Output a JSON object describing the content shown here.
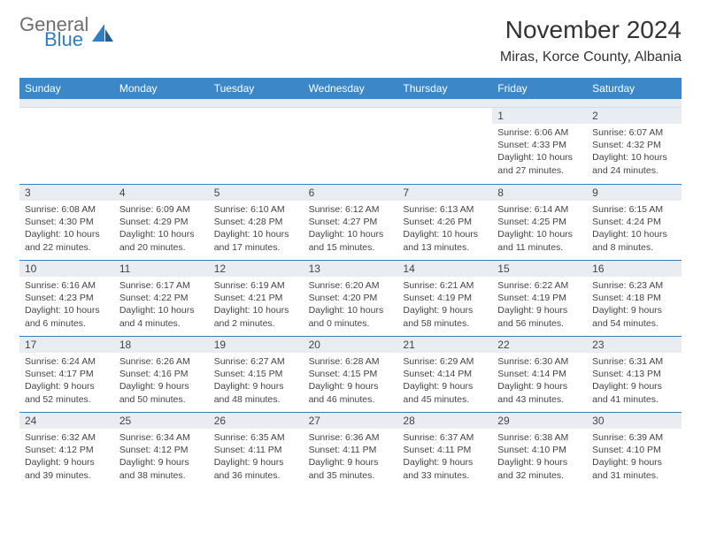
{
  "brand": {
    "general": "General",
    "blue": "Blue"
  },
  "header": {
    "title": "November 2024",
    "location": "Miras, Korce County, Albania"
  },
  "colors": {
    "header_bg": "#3b87c8",
    "band_bg": "#e9edf1",
    "rule": "#2f7fc1",
    "text": "#444444"
  },
  "weekdays": [
    "Sunday",
    "Monday",
    "Tuesday",
    "Wednesday",
    "Thursday",
    "Friday",
    "Saturday"
  ],
  "layout": {
    "columns": 7,
    "rows": 5,
    "blanks_before": 5
  },
  "days": [
    {
      "n": "1",
      "sr": "Sunrise: 6:06 AM",
      "ss": "Sunset: 4:33 PM",
      "d1": "Daylight: 10 hours",
      "d2": "and 27 minutes."
    },
    {
      "n": "2",
      "sr": "Sunrise: 6:07 AM",
      "ss": "Sunset: 4:32 PM",
      "d1": "Daylight: 10 hours",
      "d2": "and 24 minutes."
    },
    {
      "n": "3",
      "sr": "Sunrise: 6:08 AM",
      "ss": "Sunset: 4:30 PM",
      "d1": "Daylight: 10 hours",
      "d2": "and 22 minutes."
    },
    {
      "n": "4",
      "sr": "Sunrise: 6:09 AM",
      "ss": "Sunset: 4:29 PM",
      "d1": "Daylight: 10 hours",
      "d2": "and 20 minutes."
    },
    {
      "n": "5",
      "sr": "Sunrise: 6:10 AM",
      "ss": "Sunset: 4:28 PM",
      "d1": "Daylight: 10 hours",
      "d2": "and 17 minutes."
    },
    {
      "n": "6",
      "sr": "Sunrise: 6:12 AM",
      "ss": "Sunset: 4:27 PM",
      "d1": "Daylight: 10 hours",
      "d2": "and 15 minutes."
    },
    {
      "n": "7",
      "sr": "Sunrise: 6:13 AM",
      "ss": "Sunset: 4:26 PM",
      "d1": "Daylight: 10 hours",
      "d2": "and 13 minutes."
    },
    {
      "n": "8",
      "sr": "Sunrise: 6:14 AM",
      "ss": "Sunset: 4:25 PM",
      "d1": "Daylight: 10 hours",
      "d2": "and 11 minutes."
    },
    {
      "n": "9",
      "sr": "Sunrise: 6:15 AM",
      "ss": "Sunset: 4:24 PM",
      "d1": "Daylight: 10 hours",
      "d2": "and 8 minutes."
    },
    {
      "n": "10",
      "sr": "Sunrise: 6:16 AM",
      "ss": "Sunset: 4:23 PM",
      "d1": "Daylight: 10 hours",
      "d2": "and 6 minutes."
    },
    {
      "n": "11",
      "sr": "Sunrise: 6:17 AM",
      "ss": "Sunset: 4:22 PM",
      "d1": "Daylight: 10 hours",
      "d2": "and 4 minutes."
    },
    {
      "n": "12",
      "sr": "Sunrise: 6:19 AM",
      "ss": "Sunset: 4:21 PM",
      "d1": "Daylight: 10 hours",
      "d2": "and 2 minutes."
    },
    {
      "n": "13",
      "sr": "Sunrise: 6:20 AM",
      "ss": "Sunset: 4:20 PM",
      "d1": "Daylight: 10 hours",
      "d2": "and 0 minutes."
    },
    {
      "n": "14",
      "sr": "Sunrise: 6:21 AM",
      "ss": "Sunset: 4:19 PM",
      "d1": "Daylight: 9 hours",
      "d2": "and 58 minutes."
    },
    {
      "n": "15",
      "sr": "Sunrise: 6:22 AM",
      "ss": "Sunset: 4:19 PM",
      "d1": "Daylight: 9 hours",
      "d2": "and 56 minutes."
    },
    {
      "n": "16",
      "sr": "Sunrise: 6:23 AM",
      "ss": "Sunset: 4:18 PM",
      "d1": "Daylight: 9 hours",
      "d2": "and 54 minutes."
    },
    {
      "n": "17",
      "sr": "Sunrise: 6:24 AM",
      "ss": "Sunset: 4:17 PM",
      "d1": "Daylight: 9 hours",
      "d2": "and 52 minutes."
    },
    {
      "n": "18",
      "sr": "Sunrise: 6:26 AM",
      "ss": "Sunset: 4:16 PM",
      "d1": "Daylight: 9 hours",
      "d2": "and 50 minutes."
    },
    {
      "n": "19",
      "sr": "Sunrise: 6:27 AM",
      "ss": "Sunset: 4:15 PM",
      "d1": "Daylight: 9 hours",
      "d2": "and 48 minutes."
    },
    {
      "n": "20",
      "sr": "Sunrise: 6:28 AM",
      "ss": "Sunset: 4:15 PM",
      "d1": "Daylight: 9 hours",
      "d2": "and 46 minutes."
    },
    {
      "n": "21",
      "sr": "Sunrise: 6:29 AM",
      "ss": "Sunset: 4:14 PM",
      "d1": "Daylight: 9 hours",
      "d2": "and 45 minutes."
    },
    {
      "n": "22",
      "sr": "Sunrise: 6:30 AM",
      "ss": "Sunset: 4:14 PM",
      "d1": "Daylight: 9 hours",
      "d2": "and 43 minutes."
    },
    {
      "n": "23",
      "sr": "Sunrise: 6:31 AM",
      "ss": "Sunset: 4:13 PM",
      "d1": "Daylight: 9 hours",
      "d2": "and 41 minutes."
    },
    {
      "n": "24",
      "sr": "Sunrise: 6:32 AM",
      "ss": "Sunset: 4:12 PM",
      "d1": "Daylight: 9 hours",
      "d2": "and 39 minutes."
    },
    {
      "n": "25",
      "sr": "Sunrise: 6:34 AM",
      "ss": "Sunset: 4:12 PM",
      "d1": "Daylight: 9 hours",
      "d2": "and 38 minutes."
    },
    {
      "n": "26",
      "sr": "Sunrise: 6:35 AM",
      "ss": "Sunset: 4:11 PM",
      "d1": "Daylight: 9 hours",
      "d2": "and 36 minutes."
    },
    {
      "n": "27",
      "sr": "Sunrise: 6:36 AM",
      "ss": "Sunset: 4:11 PM",
      "d1": "Daylight: 9 hours",
      "d2": "and 35 minutes."
    },
    {
      "n": "28",
      "sr": "Sunrise: 6:37 AM",
      "ss": "Sunset: 4:11 PM",
      "d1": "Daylight: 9 hours",
      "d2": "and 33 minutes."
    },
    {
      "n": "29",
      "sr": "Sunrise: 6:38 AM",
      "ss": "Sunset: 4:10 PM",
      "d1": "Daylight: 9 hours",
      "d2": "and 32 minutes."
    },
    {
      "n": "30",
      "sr": "Sunrise: 6:39 AM",
      "ss": "Sunset: 4:10 PM",
      "d1": "Daylight: 9 hours",
      "d2": "and 31 minutes."
    }
  ]
}
